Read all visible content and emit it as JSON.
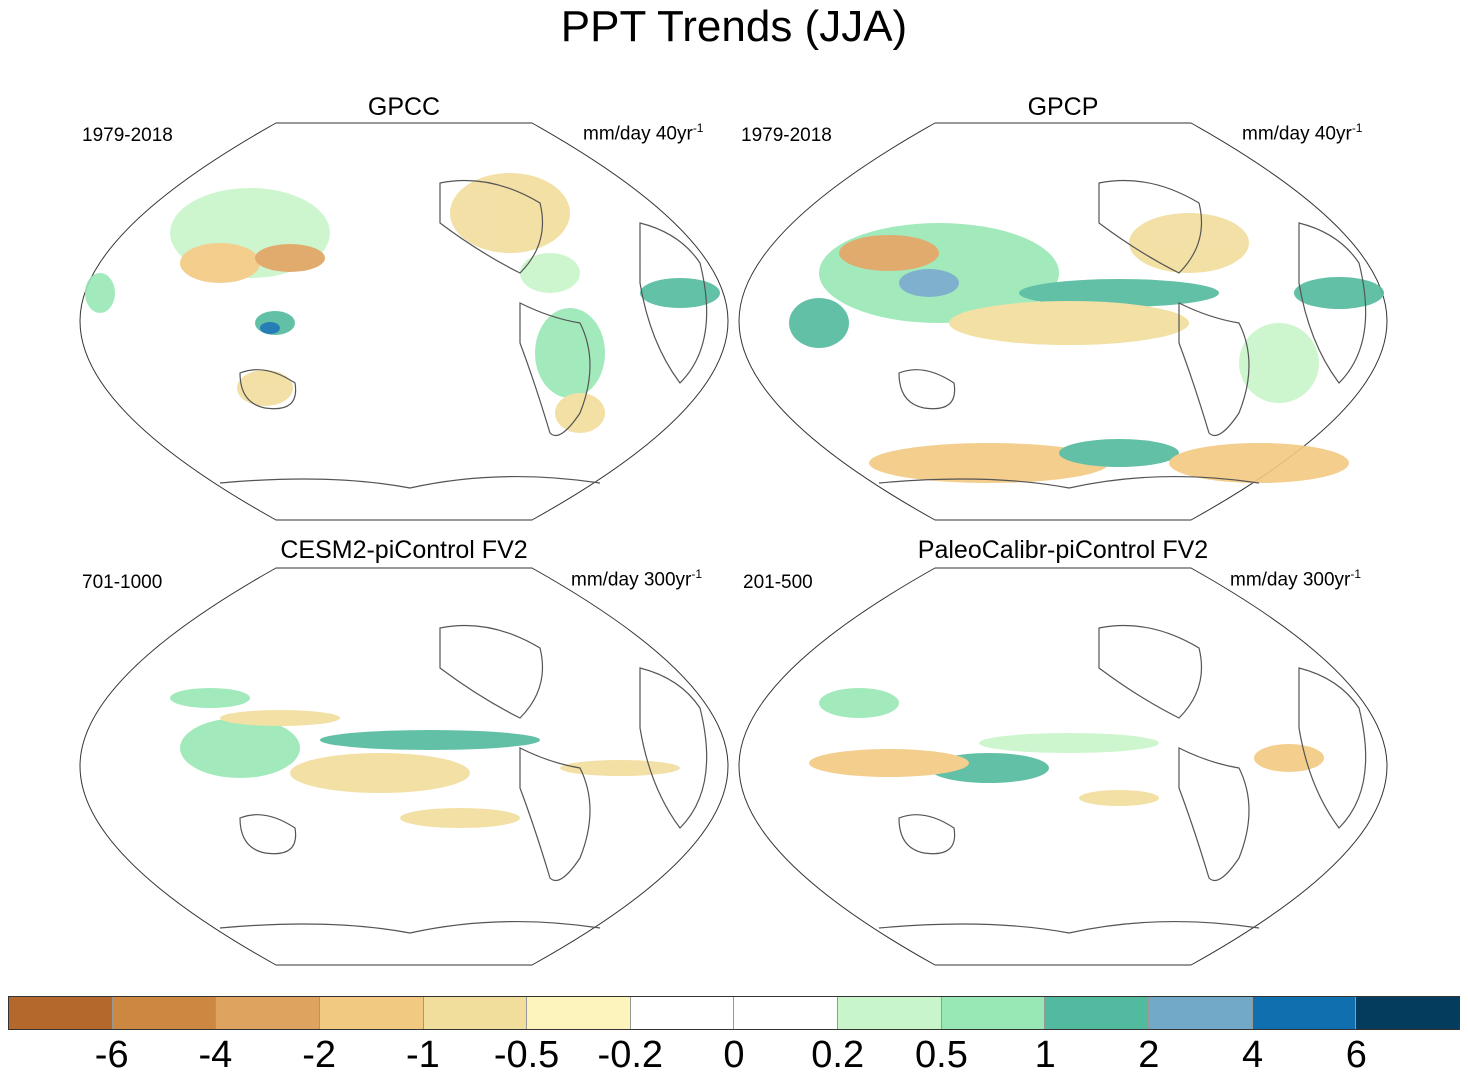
{
  "title": "PPT Trends (JJA)",
  "panels": [
    {
      "title": "GPCC",
      "period": "1979-2018",
      "units": "mm/day 40yr",
      "units_exp": "-1"
    },
    {
      "title": "GPCP",
      "period": "1979-2018",
      "units": "mm/day 40yr",
      "units_exp": "-1"
    },
    {
      "title": "CESM2-piControl FV2",
      "period": "701-1000",
      "units": "mm/day 300yr",
      "units_exp": "-1"
    },
    {
      "title": "PaleoCalibr-piControl FV2",
      "period": "201-500",
      "units": "mm/day 300yr",
      "units_exp": "-1"
    }
  ],
  "colorbar": {
    "colors": [
      "#b4682b",
      "#cc8740",
      "#dea35f",
      "#f2c981",
      "#f1dd9c",
      "#fdf3bd",
      "#ffffff",
      "#ffffff",
      "#c8f5c9",
      "#98e8b5",
      "#52ba9e",
      "#72a9c9",
      "#106fae",
      "#033c5c"
    ],
    "ticks": [
      "-6",
      "-4",
      "-2",
      "-1",
      "-0.5",
      "-0.2",
      "0",
      "0.2",
      "0.5",
      "1",
      "2",
      "4",
      "6"
    ]
  }
}
